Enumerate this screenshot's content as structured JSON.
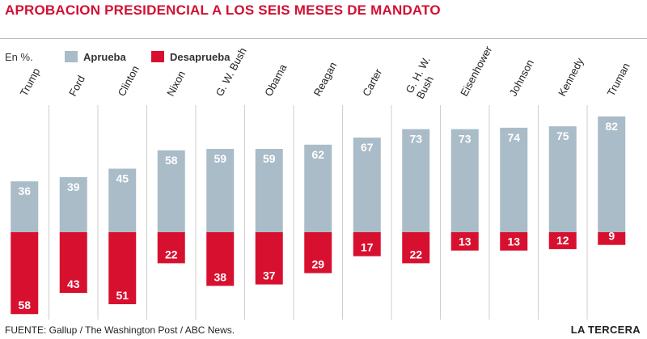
{
  "header": {
    "title": "APROBACION PRESIDENCIAL A LOS SEIS MESES DE MANDATO",
    "unit": "En %."
  },
  "legend": {
    "approve_label": "Aprueba",
    "disapprove_label": "Desaprueba"
  },
  "colors": {
    "approve": "#a9bcc8",
    "disapprove": "#d8102f",
    "title": "#d11133",
    "divider": "#cfcfcf"
  },
  "footer": {
    "source": "FUENTE: Gallup / The Washington Post / ABC News.",
    "brand": "LA TERCERA"
  },
  "chart_data": {
    "type": "bar",
    "title": "APROBACION PRESIDENCIAL A LOS SEIS MESES DE MANDATO",
    "categories": [
      "Trump",
      "Ford",
      "Clinton",
      "Nixon",
      "G. W. Bush",
      "Obama",
      "Reagan",
      "Carter",
      "G. H. W. Bush",
      "Eisenhower",
      "Johnson",
      "Kennedy",
      "Truman"
    ],
    "category_lines": [
      [
        "Trump"
      ],
      [
        "Ford"
      ],
      [
        "Clinton"
      ],
      [
        "Nixon"
      ],
      [
        "G. W. Bush"
      ],
      [
        "Obama"
      ],
      [
        "Reagan"
      ],
      [
        "Carter"
      ],
      [
        "G. H. W.",
        "Bush"
      ],
      [
        "Eisenhower"
      ],
      [
        "Johnson"
      ],
      [
        "Kennedy"
      ],
      [
        "Truman"
      ]
    ],
    "series": [
      {
        "name": "Aprueba",
        "values": [
          36,
          39,
          45,
          58,
          59,
          59,
          62,
          67,
          73,
          73,
          74,
          75,
          82
        ]
      },
      {
        "name": "Desaprueba",
        "values": [
          58,
          43,
          51,
          22,
          38,
          37,
          29,
          17,
          22,
          13,
          13,
          12,
          9
        ]
      }
    ],
    "legend": "top-left",
    "grid": false
  }
}
